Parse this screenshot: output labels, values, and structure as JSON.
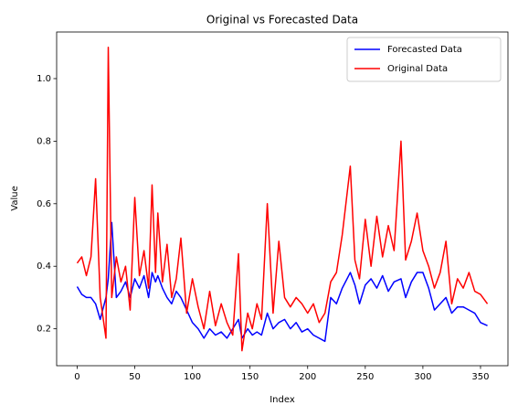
{
  "chart_data": {
    "type": "line",
    "title": "Original vs Forecasted Data",
    "x_label": "Index",
    "y_label": "Value",
    "x": [
      0,
      4,
      8,
      12,
      16,
      20,
      25,
      27,
      30,
      34,
      38,
      42,
      46,
      50,
      54,
      58,
      62,
      65,
      68,
      70,
      74,
      78,
      82,
      86,
      90,
      95,
      100,
      105,
      110,
      115,
      120,
      125,
      130,
      135,
      140,
      143,
      148,
      152,
      156,
      160,
      165,
      170,
      175,
      180,
      185,
      190,
      195,
      200,
      205,
      210,
      215,
      220,
      225,
      230,
      237,
      241,
      245,
      250,
      255,
      260,
      265,
      270,
      275,
      281,
      285,
      290,
      295,
      300,
      305,
      310,
      315,
      320,
      325,
      330,
      335,
      340,
      345,
      350,
      356
    ],
    "series": [
      {
        "name": "Forecasted Data",
        "color": "#0000ff",
        "values": [
          0.335,
          0.31,
          0.3,
          0.3,
          0.28,
          0.23,
          0.3,
          0.36,
          0.54,
          0.3,
          0.32,
          0.35,
          0.3,
          0.36,
          0.33,
          0.37,
          0.3,
          0.38,
          0.35,
          0.37,
          0.33,
          0.3,
          0.28,
          0.32,
          0.3,
          0.26,
          0.22,
          0.2,
          0.17,
          0.2,
          0.18,
          0.19,
          0.17,
          0.2,
          0.23,
          0.17,
          0.2,
          0.18,
          0.19,
          0.18,
          0.25,
          0.2,
          0.22,
          0.23,
          0.2,
          0.22,
          0.19,
          0.2,
          0.18,
          0.17,
          0.16,
          0.3,
          0.28,
          0.33,
          0.38,
          0.34,
          0.28,
          0.34,
          0.36,
          0.33,
          0.37,
          0.32,
          0.35,
          0.36,
          0.3,
          0.35,
          0.38,
          0.38,
          0.33,
          0.26,
          0.28,
          0.3,
          0.25,
          0.27,
          0.27,
          0.26,
          0.25,
          0.22,
          0.21
        ]
      },
      {
        "name": "Original Data",
        "color": "#ff0000",
        "values": [
          0.41,
          0.43,
          0.37,
          0.43,
          0.68,
          0.3,
          0.17,
          1.1,
          0.3,
          0.43,
          0.35,
          0.4,
          0.26,
          0.62,
          0.37,
          0.45,
          0.33,
          0.66,
          0.38,
          0.57,
          0.35,
          0.47,
          0.3,
          0.36,
          0.49,
          0.25,
          0.36,
          0.27,
          0.2,
          0.32,
          0.21,
          0.28,
          0.22,
          0.18,
          0.44,
          0.13,
          0.25,
          0.2,
          0.28,
          0.23,
          0.6,
          0.25,
          0.48,
          0.3,
          0.27,
          0.3,
          0.28,
          0.25,
          0.28,
          0.22,
          0.25,
          0.35,
          0.38,
          0.5,
          0.72,
          0.42,
          0.36,
          0.55,
          0.4,
          0.56,
          0.43,
          0.53,
          0.45,
          0.8,
          0.42,
          0.48,
          0.57,
          0.45,
          0.4,
          0.33,
          0.38,
          0.48,
          0.28,
          0.36,
          0.33,
          0.38,
          0.32,
          0.31,
          0.28
        ]
      }
    ],
    "xlim": [
      -17.8,
      373.8
    ],
    "xticks": [
      0,
      50,
      100,
      150,
      200,
      250,
      300,
      350
    ],
    "ylim": [
      0.082,
      1.149
    ],
    "yticks": [
      0.2,
      0.4,
      0.6,
      0.8,
      {
        "value": 1,
        "label": "1.0"
      }
    ],
    "legend": "upper right"
  }
}
